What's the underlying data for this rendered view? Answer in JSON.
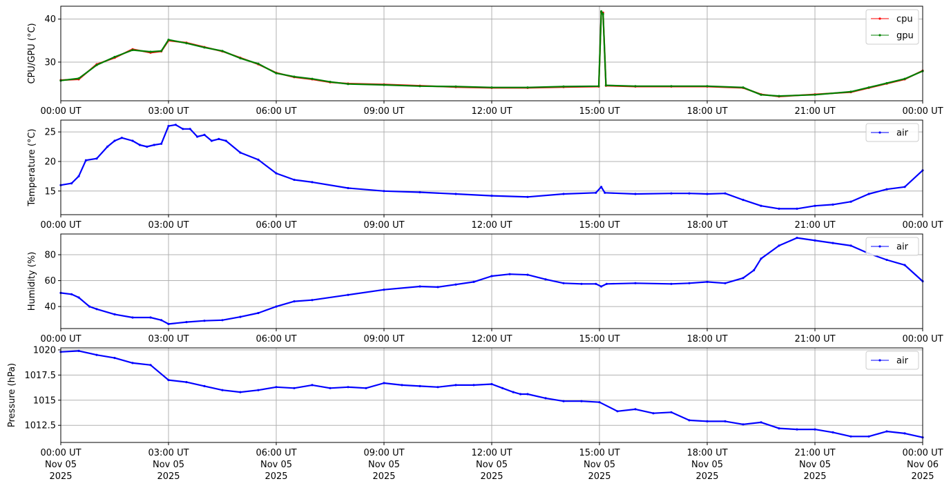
{
  "chart_data": [
    {
      "type": "line",
      "ylabel": "CPU/GPU (°C)",
      "ylim": [
        21,
        43
      ],
      "yticks": [
        30,
        40
      ],
      "xlim": [
        "00:00",
        "24:00"
      ],
      "x_unit": "hours UT",
      "grid": true,
      "legend_position": "top-right",
      "x_tick_labels": [
        "00:00 UT",
        "03:00 UT",
        "06:00 UT",
        "09:00 UT",
        "12:00 UT",
        "15:00 UT",
        "18:00 UT",
        "21:00 UT",
        "00:00 UT"
      ],
      "series": [
        {
          "name": "cpu",
          "color": "#ff0000",
          "points": [
            [
              0,
              25.8
            ],
            [
              0.5,
              26.0
            ],
            [
              1,
              29.5
            ],
            [
              1.5,
              31.0
            ],
            [
              2,
              33.0
            ],
            [
              2.5,
              32.2
            ],
            [
              2.8,
              32.5
            ],
            [
              3,
              35.0
            ],
            [
              3.5,
              34.5
            ],
            [
              4,
              33.5
            ],
            [
              4.5,
              32.5
            ],
            [
              5,
              31.0
            ],
            [
              5.5,
              29.5
            ],
            [
              6,
              27.5
            ],
            [
              6.5,
              26.5
            ],
            [
              7,
              26.0
            ],
            [
              7.5,
              25.3
            ],
            [
              8,
              25.0
            ],
            [
              9,
              24.8
            ],
            [
              10,
              24.5
            ],
            [
              11,
              24.2
            ],
            [
              12,
              24.0
            ],
            [
              13,
              24.0
            ],
            [
              14,
              24.2
            ],
            [
              14.98,
              24.3
            ],
            [
              15.05,
              41.5
            ],
            [
              15.1,
              41.5
            ],
            [
              15.18,
              24.5
            ],
            [
              16,
              24.3
            ],
            [
              17,
              24.3
            ],
            [
              18,
              24.3
            ],
            [
              19,
              24.0
            ],
            [
              19.5,
              22.5
            ],
            [
              20,
              22.0
            ],
            [
              21,
              22.5
            ],
            [
              22,
              23.0
            ],
            [
              22.5,
              24.0
            ],
            [
              23,
              25.0
            ],
            [
              23.5,
              26.0
            ],
            [
              24,
              28.0
            ]
          ]
        },
        {
          "name": "gpu",
          "color": "#008000",
          "points": [
            [
              0,
              25.7
            ],
            [
              0.5,
              26.2
            ],
            [
              1,
              29.3
            ],
            [
              1.5,
              31.2
            ],
            [
              2,
              32.8
            ],
            [
              2.5,
              32.4
            ],
            [
              2.8,
              32.6
            ],
            [
              3,
              35.2
            ],
            [
              3.5,
              34.4
            ],
            [
              4,
              33.4
            ],
            [
              4.5,
              32.6
            ],
            [
              5,
              30.9
            ],
            [
              5.5,
              29.6
            ],
            [
              6,
              27.4
            ],
            [
              6.5,
              26.6
            ],
            [
              7,
              26.1
            ],
            [
              7.5,
              25.4
            ],
            [
              8,
              24.9
            ],
            [
              9,
              24.7
            ],
            [
              10,
              24.4
            ],
            [
              11,
              24.3
            ],
            [
              12,
              24.1
            ],
            [
              13,
              24.1
            ],
            [
              14,
              24.3
            ],
            [
              14.98,
              24.4
            ],
            [
              15.05,
              41.8
            ],
            [
              15.1,
              41.2
            ],
            [
              15.18,
              24.6
            ],
            [
              16,
              24.4
            ],
            [
              17,
              24.4
            ],
            [
              18,
              24.4
            ],
            [
              19,
              24.1
            ],
            [
              19.5,
              22.4
            ],
            [
              20,
              22.1
            ],
            [
              21,
              22.4
            ],
            [
              22,
              23.1
            ],
            [
              22.5,
              24.1
            ],
            [
              23,
              25.1
            ],
            [
              23.5,
              26.1
            ],
            [
              24,
              27.9
            ]
          ]
        }
      ]
    },
    {
      "type": "line",
      "ylabel": "Temperature (°C)",
      "ylim": [
        11,
        27
      ],
      "yticks": [
        15,
        20,
        25
      ],
      "xlim": [
        "00:00",
        "24:00"
      ],
      "x_unit": "hours UT",
      "grid": true,
      "legend_position": "top-right",
      "x_tick_labels": [
        "00:00 UT",
        "03:00 UT",
        "06:00 UT",
        "09:00 UT",
        "12:00 UT",
        "15:00 UT",
        "18:00 UT",
        "21:00 UT",
        "00:00 UT"
      ],
      "series": [
        {
          "name": "air",
          "color": "#0000ff",
          "points": [
            [
              0,
              16.0
            ],
            [
              0.3,
              16.3
            ],
            [
              0.5,
              17.5
            ],
            [
              0.7,
              20.2
            ],
            [
              1,
              20.5
            ],
            [
              1.3,
              22.5
            ],
            [
              1.5,
              23.5
            ],
            [
              1.7,
              24.0
            ],
            [
              2,
              23.5
            ],
            [
              2.2,
              22.8
            ],
            [
              2.4,
              22.5
            ],
            [
              2.6,
              22.8
            ],
            [
              2.8,
              23.0
            ],
            [
              3,
              26.0
            ],
            [
              3.2,
              26.2
            ],
            [
              3.4,
              25.5
            ],
            [
              3.6,
              25.5
            ],
            [
              3.8,
              24.2
            ],
            [
              4,
              24.5
            ],
            [
              4.2,
              23.5
            ],
            [
              4.4,
              23.8
            ],
            [
              4.6,
              23.5
            ],
            [
              5,
              21.5
            ],
            [
              5.5,
              20.3
            ],
            [
              6,
              18.0
            ],
            [
              6.5,
              16.9
            ],
            [
              7,
              16.5
            ],
            [
              8,
              15.5
            ],
            [
              9,
              15.0
            ],
            [
              10,
              14.8
            ],
            [
              11,
              14.5
            ],
            [
              12,
              14.2
            ],
            [
              13,
              14.0
            ],
            [
              14,
              14.5
            ],
            [
              14.9,
              14.7
            ],
            [
              15.05,
              15.7
            ],
            [
              15.15,
              14.7
            ],
            [
              16,
              14.5
            ],
            [
              17,
              14.6
            ],
            [
              17.5,
              14.6
            ],
            [
              18,
              14.5
            ],
            [
              18.5,
              14.6
            ],
            [
              19,
              13.5
            ],
            [
              19.5,
              12.5
            ],
            [
              20,
              12.0
            ],
            [
              20.5,
              12.0
            ],
            [
              21,
              12.5
            ],
            [
              21.5,
              12.7
            ],
            [
              22,
              13.2
            ],
            [
              22.5,
              14.5
            ],
            [
              23,
              15.3
            ],
            [
              23.5,
              15.7
            ],
            [
              24,
              18.5
            ]
          ]
        }
      ]
    },
    {
      "type": "line",
      "ylabel": "Humidity (%)",
      "ylim": [
        23,
        96
      ],
      "yticks": [
        40,
        60,
        80
      ],
      "xlim": [
        "00:00",
        "24:00"
      ],
      "x_unit": "hours UT",
      "grid": true,
      "legend_position": "top-right",
      "x_tick_labels": [
        "00:00 UT",
        "03:00 UT",
        "06:00 UT",
        "09:00 UT",
        "12:00 UT",
        "15:00 UT",
        "18:00 UT",
        "21:00 UT",
        "00:00 UT"
      ],
      "series": [
        {
          "name": "air",
          "color": "#0000ff",
          "points": [
            [
              0,
              50.5
            ],
            [
              0.3,
              49.5
            ],
            [
              0.5,
              47.0
            ],
            [
              0.8,
              40.0
            ],
            [
              1,
              38.0
            ],
            [
              1.5,
              34.0
            ],
            [
              2,
              31.5
            ],
            [
              2.5,
              31.5
            ],
            [
              2.8,
              29.5
            ],
            [
              3,
              26.5
            ],
            [
              3.5,
              28.0
            ],
            [
              4,
              29.0
            ],
            [
              4.5,
              29.5
            ],
            [
              5,
              32.0
            ],
            [
              5.5,
              35.0
            ],
            [
              6,
              40.0
            ],
            [
              6.5,
              44.0
            ],
            [
              7,
              45.0
            ],
            [
              8,
              49.0
            ],
            [
              9,
              53.0
            ],
            [
              10,
              55.5
            ],
            [
              10.5,
              55.0
            ],
            [
              11,
              57.0
            ],
            [
              11.5,
              59.0
            ],
            [
              12,
              63.5
            ],
            [
              12.5,
              65.0
            ],
            [
              13,
              64.5
            ],
            [
              13.5,
              61.0
            ],
            [
              14,
              58.0
            ],
            [
              14.5,
              57.5
            ],
            [
              14.9,
              57.5
            ],
            [
              15.05,
              55.5
            ],
            [
              15.2,
              57.5
            ],
            [
              16,
              58.0
            ],
            [
              17,
              57.5
            ],
            [
              17.5,
              58.0
            ],
            [
              18,
              59.0
            ],
            [
              18.5,
              58.0
            ],
            [
              19,
              62.0
            ],
            [
              19.3,
              68.0
            ],
            [
              19.5,
              77.0
            ],
            [
              20,
              87.0
            ],
            [
              20.5,
              93.0
            ],
            [
              21,
              91.0
            ],
            [
              21.5,
              89.0
            ],
            [
              22,
              87.0
            ],
            [
              22.5,
              81.0
            ],
            [
              23,
              76.0
            ],
            [
              23.5,
              72.0
            ],
            [
              24,
              59.5
            ]
          ]
        }
      ]
    },
    {
      "type": "line",
      "ylabel": "Pressure (hPa)",
      "ylim": [
        1010.8,
        1020.2
      ],
      "yticks": [
        1012.5,
        1015.0,
        1017.5,
        1020.0
      ],
      "xlim": [
        "2025-11-05 00:00",
        "2025-11-06 00:00"
      ],
      "x_unit": "hours UT",
      "grid": true,
      "legend_position": "top-right",
      "x_tick_labels": [
        [
          "00:00 UT",
          "Nov 05",
          "2025"
        ],
        [
          "03:00 UT",
          "Nov 05",
          "2025"
        ],
        [
          "06:00 UT",
          "Nov 05",
          "2025"
        ],
        [
          "09:00 UT",
          "Nov 05",
          "2025"
        ],
        [
          "12:00 UT",
          "Nov 05",
          "2025"
        ],
        [
          "15:00 UT",
          "Nov 05",
          "2025"
        ],
        [
          "18:00 UT",
          "Nov 05",
          "2025"
        ],
        [
          "21:00 UT",
          "Nov 05",
          "2025"
        ],
        [
          "00:00 UT",
          "Nov 06",
          "2025"
        ]
      ],
      "series": [
        {
          "name": "air",
          "color": "#0000ff",
          "points": [
            [
              0,
              1019.8
            ],
            [
              0.5,
              1019.9
            ],
            [
              1,
              1019.5
            ],
            [
              1.5,
              1019.2
            ],
            [
              2,
              1018.7
            ],
            [
              2.5,
              1018.5
            ],
            [
              3,
              1017.0
            ],
            [
              3.5,
              1016.8
            ],
            [
              4,
              1016.4
            ],
            [
              4.5,
              1016.0
            ],
            [
              5,
              1015.8
            ],
            [
              5.5,
              1016.0
            ],
            [
              6,
              1016.3
            ],
            [
              6.5,
              1016.2
            ],
            [
              7,
              1016.5
            ],
            [
              7.5,
              1016.2
            ],
            [
              8,
              1016.3
            ],
            [
              8.5,
              1016.2
            ],
            [
              9,
              1016.7
            ],
            [
              9.5,
              1016.5
            ],
            [
              10,
              1016.4
            ],
            [
              10.5,
              1016.3
            ],
            [
              11,
              1016.5
            ],
            [
              11.5,
              1016.5
            ],
            [
              12,
              1016.6
            ],
            [
              12.3,
              1016.2
            ],
            [
              12.6,
              1015.8
            ],
            [
              12.8,
              1015.6
            ],
            [
              13,
              1015.6
            ],
            [
              13.5,
              1015.2
            ],
            [
              14,
              1014.9
            ],
            [
              14.5,
              1014.9
            ],
            [
              15,
              1014.8
            ],
            [
              15.5,
              1013.9
            ],
            [
              16,
              1014.1
            ],
            [
              16.5,
              1013.7
            ],
            [
              17,
              1013.8
            ],
            [
              17.5,
              1013.0
            ],
            [
              18,
              1012.9
            ],
            [
              18.5,
              1012.9
            ],
            [
              19,
              1012.6
            ],
            [
              19.5,
              1012.8
            ],
            [
              20,
              1012.2
            ],
            [
              20.5,
              1012.1
            ],
            [
              21,
              1012.1
            ],
            [
              21.5,
              1011.8
            ],
            [
              22,
              1011.4
            ],
            [
              22.5,
              1011.4
            ],
            [
              23,
              1011.9
            ],
            [
              23.5,
              1011.7
            ],
            [
              24,
              1011.3
            ]
          ]
        }
      ]
    }
  ]
}
